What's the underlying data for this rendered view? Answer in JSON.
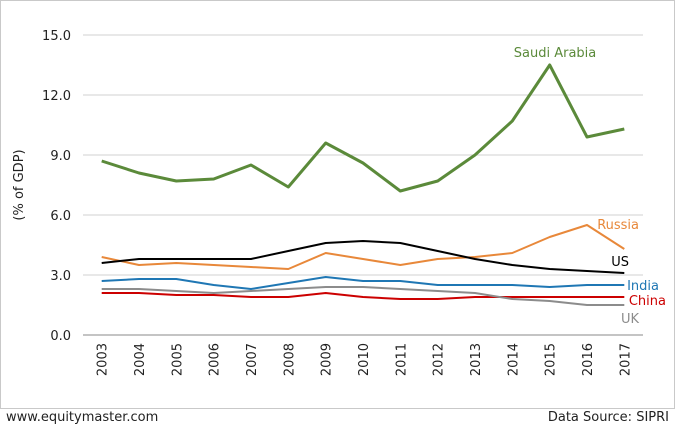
{
  "footer": {
    "website": "www.equitymaster.com",
    "source": "Data Source: SIPRI"
  },
  "chart_data": {
    "type": "line",
    "title": "",
    "xlabel": "",
    "ylabel": "(% of GDP)",
    "ylim": [
      0,
      15
    ],
    "yticks": [
      "0.0",
      "3.0",
      "6.0",
      "9.0",
      "12.0",
      "15.0"
    ],
    "grid": "horizontal",
    "legend": "inline labels at line ends",
    "x": [
      "2003",
      "2004",
      "2005",
      "2006",
      "2007",
      "2008",
      "2009",
      "2010",
      "2011",
      "2012",
      "2013",
      "2014",
      "2015",
      "2016",
      "2017"
    ],
    "series": [
      {
        "name": "Saudi Arabia",
        "color": "#5b8a3a",
        "values": [
          8.7,
          8.1,
          7.7,
          7.8,
          8.5,
          7.4,
          9.6,
          8.6,
          7.2,
          7.7,
          9.0,
          10.7,
          13.5,
          9.9,
          10.3
        ]
      },
      {
        "name": "Russia",
        "color": "#e8883a",
        "values": [
          3.9,
          3.5,
          3.6,
          3.5,
          3.4,
          3.3,
          4.1,
          3.8,
          3.5,
          3.8,
          3.9,
          4.1,
          4.9,
          5.5,
          4.3
        ]
      },
      {
        "name": "US",
        "color": "#000000",
        "values": [
          3.6,
          3.8,
          3.8,
          3.8,
          3.8,
          4.2,
          4.6,
          4.7,
          4.6,
          4.2,
          3.8,
          3.5,
          3.3,
          3.2,
          3.1
        ]
      },
      {
        "name": "India",
        "color": "#1f77b4",
        "values": [
          2.7,
          2.8,
          2.8,
          2.5,
          2.3,
          2.6,
          2.9,
          2.7,
          2.7,
          2.5,
          2.5,
          2.5,
          2.4,
          2.5,
          2.5
        ]
      },
      {
        "name": "China",
        "color": "#cc0000",
        "values": [
          2.1,
          2.1,
          2.0,
          2.0,
          1.9,
          1.9,
          2.1,
          1.9,
          1.8,
          1.8,
          1.9,
          1.9,
          1.9,
          1.9,
          1.9
        ]
      },
      {
        "name": "UK",
        "color": "#8c8c8c",
        "values": [
          2.3,
          2.3,
          2.2,
          2.1,
          2.2,
          2.3,
          2.4,
          2.4,
          2.3,
          2.2,
          2.1,
          1.8,
          1.7,
          1.5,
          1.5
        ]
      }
    ]
  }
}
